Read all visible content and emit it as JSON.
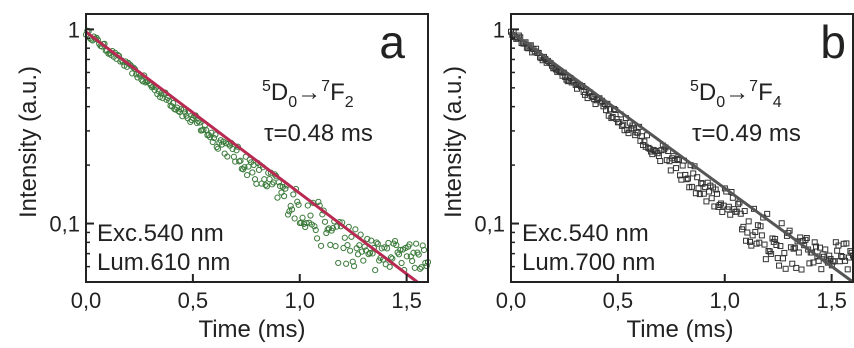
{
  "chart_data": [
    {
      "type": "scatter",
      "panel_label": "a",
      "xlabel": "Time (ms)",
      "ylabel": "Intensity (a.u.)",
      "x_ticks": [
        0,
        0.5,
        1.0,
        1.5
      ],
      "x_tick_labels": [
        "0,0",
        "0,5",
        "1,0",
        "1,5"
      ],
      "y_ticks": [
        1,
        0.1
      ],
      "y_tick_labels": [
        "1",
        "0,1"
      ],
      "xlim": [
        0,
        1.6
      ],
      "ylim": [
        0.05,
        1.2
      ],
      "y_scale": "log",
      "transition": {
        "upper": "5",
        "upper_state": "D",
        "upper_sub": "0",
        "arrow": "→",
        "lower": "7",
        "lower_state": "F",
        "lower_sub": "2"
      },
      "tau_text": "τ=0.48 ms",
      "excitation_text": "Exc.540 nm",
      "luminescence_text": "Lum.610 nm",
      "series": [
        {
          "marker": "open-circle",
          "color": "#3a7a3a",
          "decay_time_ms": 0.48,
          "x_range": [
            0,
            1.6
          ],
          "y_at_x0": 0.97,
          "y_floor": 0.05
        },
        {
          "line": "fit",
          "color": "#b82a52",
          "decay_time_ms": 0.48,
          "x_range": [
            0,
            1.55
          ],
          "y_at_x0": 0.97
        }
      ]
    },
    {
      "type": "scatter",
      "panel_label": "b",
      "xlabel": "Time (ms)",
      "ylabel": "Intensity (a.u.)",
      "x_ticks": [
        0,
        0.5,
        1.0,
        1.5
      ],
      "x_tick_labels": [
        "0,0",
        "0,5",
        "1,0",
        "1,5"
      ],
      "y_ticks": [
        1,
        0.1
      ],
      "y_tick_labels": [
        "1",
        "0,1"
      ],
      "xlim": [
        0,
        1.6
      ],
      "ylim": [
        0.05,
        1.2
      ],
      "y_scale": "log",
      "transition": {
        "upper": "5",
        "upper_state": "D",
        "upper_sub": "0",
        "arrow": "→",
        "lower": "7",
        "lower_state": "F",
        "lower_sub": "4"
      },
      "tau_text": "τ=0.49 ms",
      "excitation_text": "Exc.540 nm",
      "luminescence_text": "Lum.700 nm",
      "series": [
        {
          "marker": "open-square",
          "color": "#333333",
          "decay_time_ms": 0.49,
          "x_range": [
            0,
            1.6
          ],
          "y_at_x0": 0.97,
          "y_floor": 0.05
        },
        {
          "line": "fit",
          "color": "#555555",
          "decay_time_ms": 0.49,
          "x_range": [
            0,
            1.6
          ],
          "y_at_x0": 0.97
        }
      ]
    }
  ]
}
